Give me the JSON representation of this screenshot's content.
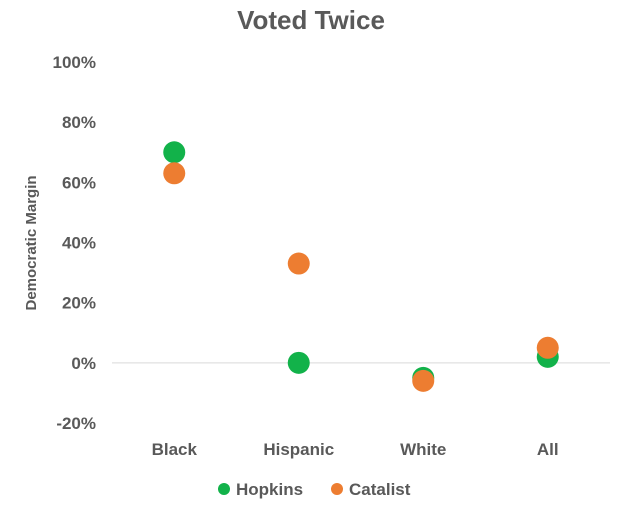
{
  "chart_data": {
    "type": "scatter",
    "title": "Voted Twice",
    "xlabel": "",
    "ylabel": "Democratic Margin",
    "categories": [
      "Black",
      "Hispanic",
      "White",
      "All"
    ],
    "ylim": [
      -20,
      100
    ],
    "yticks": [
      -20,
      0,
      20,
      40,
      60,
      80,
      100
    ],
    "ytick_labels": [
      "-20%",
      "0%",
      "20%",
      "40%",
      "60%",
      "80%",
      "100%"
    ],
    "grid": false,
    "legend": "bottom",
    "series": [
      {
        "name": "Hopkins",
        "color": "#12b24a",
        "values": [
          70,
          0,
          -5,
          2
        ]
      },
      {
        "name": "Catalist",
        "color": "#ed7d31",
        "values": [
          63,
          33,
          -6,
          5
        ]
      }
    ]
  }
}
